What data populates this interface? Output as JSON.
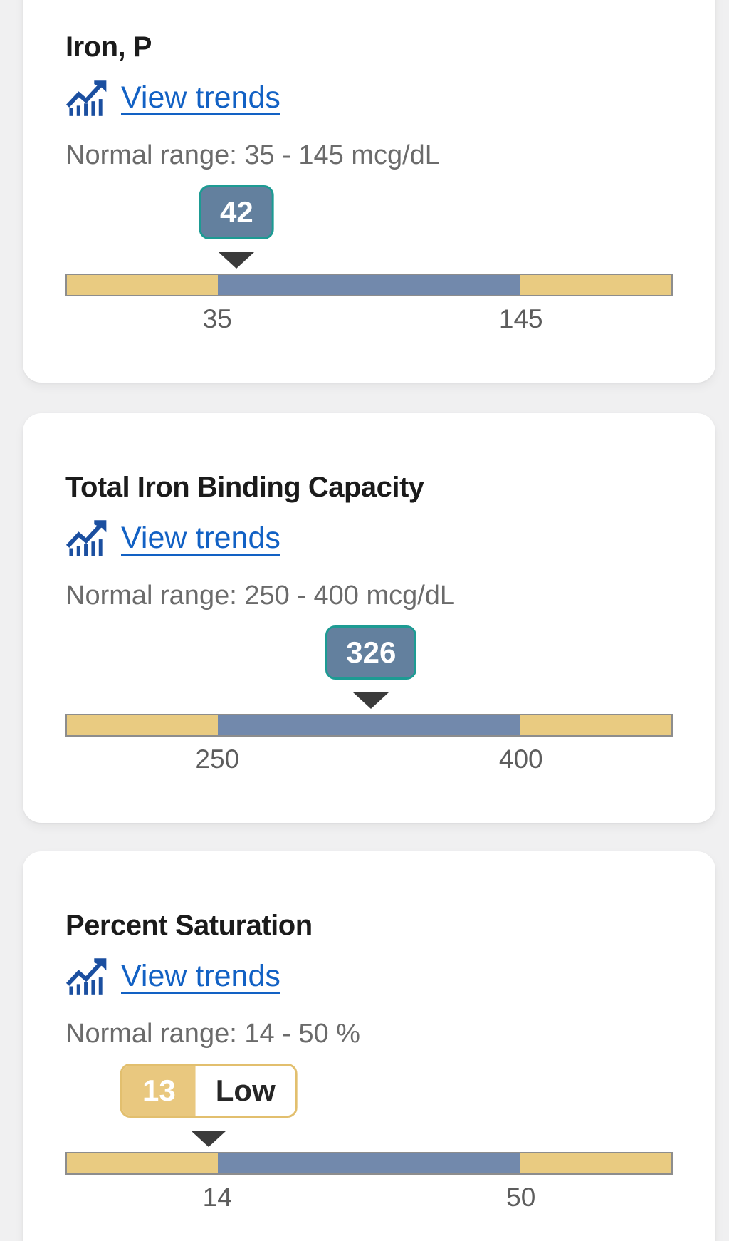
{
  "colors": {
    "page_bg": "#f0f0f1",
    "card_bg": "#ffffff",
    "title_color": "#1b1b1b",
    "link_blue": "#1261c4",
    "icon_blue": "#1b4fa0",
    "muted_gray": "#6b6b6b",
    "label_gray": "#5d5d5d",
    "bar_yellow": "#e9cb81",
    "bar_blue": "#7289ac",
    "bar_border": "#8d8d8d",
    "badge_bg": "#63809e",
    "badge_border": "#1d9b93",
    "pointer_dark": "#3b3b3b",
    "low_yellow": "#e9c87f",
    "low_border": "#e2bf6e",
    "low_text": "#262626"
  },
  "gauge_layout": {
    "normal_zone_start_pct": 25,
    "normal_zone_end_pct": 75
  },
  "cards": [
    {
      "title": "Iron, P",
      "view_trends_label": "View trends",
      "normal_range_text": "Normal range: 35 - 145 mcg/dL",
      "value": 42,
      "value_display": "42",
      "range_min": 35,
      "range_max": 145,
      "min_label": "35",
      "max_label": "145"
    },
    {
      "title": "Total Iron Binding Capacity",
      "view_trends_label": "View trends",
      "normal_range_text": "Normal range: 250 - 400 mcg/dL",
      "value": 326,
      "value_display": "326",
      "range_min": 250,
      "range_max": 400,
      "min_label": "250",
      "max_label": "400"
    },
    {
      "title": "Percent Saturation",
      "view_trends_label": "View trends",
      "normal_range_text": "Normal range: 14 - 50 %",
      "value": 13,
      "value_display": "13",
      "status_label": "Low",
      "range_min": 14,
      "range_max": 50,
      "min_label": "14",
      "max_label": "50"
    }
  ]
}
